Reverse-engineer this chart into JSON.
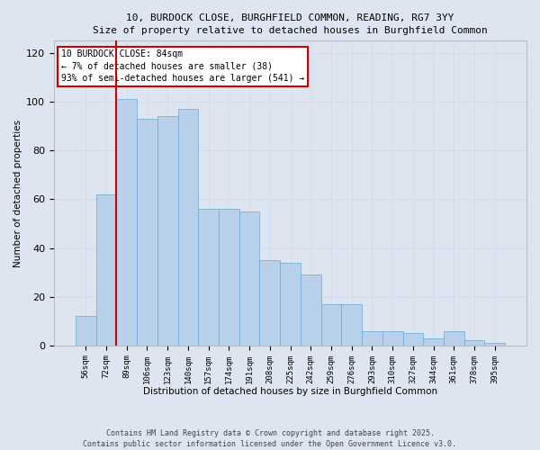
{
  "title1": "10, BURDOCK CLOSE, BURGHFIELD COMMON, READING, RG7 3YY",
  "title2": "Size of property relative to detached houses in Burghfield Common",
  "xlabel": "Distribution of detached houses by size in Burghfield Common",
  "ylabel": "Number of detached properties",
  "footer": "Contains HM Land Registry data © Crown copyright and database right 2025.\nContains public sector information licensed under the Open Government Licence v3.0.",
  "categories": [
    "56sqm",
    "72sqm",
    "89sqm",
    "106sqm",
    "123sqm",
    "140sqm",
    "157sqm",
    "174sqm",
    "191sqm",
    "208sqm",
    "225sqm",
    "242sqm",
    "259sqm",
    "276sqm",
    "293sqm",
    "310sqm",
    "327sqm",
    "344sqm",
    "361sqm",
    "378sqm",
    "395sqm"
  ],
  "values": [
    12,
    62,
    101,
    93,
    94,
    97,
    56,
    56,
    55,
    35,
    34,
    29,
    17,
    17,
    6,
    6,
    5,
    3,
    6,
    2,
    1
  ],
  "bar_color": "#b8d0ea",
  "bar_edge_color": "#6aaad4",
  "grid_color": "#d0d8e8",
  "bg_color": "#dde6f0",
  "vline_color": "#cc0000",
  "annotation_text": "10 BURDOCK CLOSE: 84sqm\n← 7% of detached houses are smaller (38)\n93% of semi-detached houses are larger (541) →",
  "annotation_box_color": "#cc0000",
  "ylim": [
    0,
    125
  ],
  "yticks": [
    0,
    20,
    40,
    60,
    80,
    100,
    120
  ],
  "title1_fontsize": 8.5,
  "title2_fontsize": 7.5
}
